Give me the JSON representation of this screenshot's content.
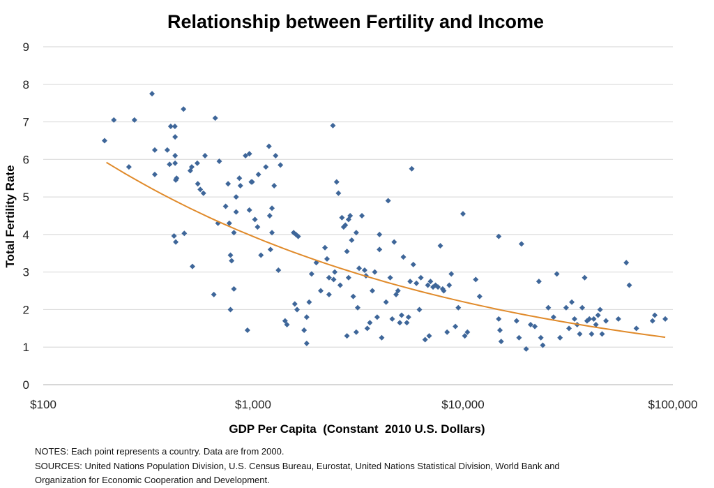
{
  "chart_data": {
    "type": "scatter",
    "title": "Relationship between Fertility and Income",
    "xlabel": "GDP Per Capita  (Constant  2010 U.S. Dollars)",
    "ylabel": "Total Fertility Rate",
    "xscale": "log",
    "xlim": [
      100,
      100000
    ],
    "ylim": [
      0,
      9
    ],
    "x_ticks": [
      100,
      1000,
      10000,
      100000
    ],
    "x_tick_labels": [
      "$100",
      "$1,000",
      "$10,000",
      "$100,000"
    ],
    "y_ticks": [
      0,
      1,
      2,
      3,
      4,
      5,
      6,
      7,
      8,
      9
    ],
    "y_tick_labels": [
      "0",
      "1",
      "2",
      "3",
      "4",
      "5",
      "6",
      "7",
      "8",
      "9"
    ],
    "grid": true,
    "point_color": "#3e6699",
    "trend_color": "#e08a2a",
    "trendline": {
      "type": "power",
      "a": 22.5,
      "b": -0.252,
      "x_range": [
        200,
        92000
      ]
    },
    "points": [
      [
        196,
        6.5
      ],
      [
        217,
        7.05
      ],
      [
        272,
        7.05
      ],
      [
        256,
        5.8
      ],
      [
        330,
        7.75
      ],
      [
        340,
        6.25
      ],
      [
        340,
        5.6
      ],
      [
        390,
        6.25
      ],
      [
        400,
        5.87
      ],
      [
        405,
        6.88
      ],
      [
        424,
        6.88
      ],
      [
        425,
        6.6
      ],
      [
        425,
        6.1
      ],
      [
        425,
        5.9
      ],
      [
        428,
        5.45
      ],
      [
        432,
        5.5
      ],
      [
        420,
        3.96
      ],
      [
        428,
        3.8
      ],
      [
        466,
        7.34
      ],
      [
        470,
        4.03
      ],
      [
        514,
        3.15
      ],
      [
        502,
        5.7
      ],
      [
        510,
        5.8
      ],
      [
        542,
        5.9
      ],
      [
        545,
        5.35
      ],
      [
        560,
        5.2
      ],
      [
        580,
        5.1
      ],
      [
        590,
        6.1
      ],
      [
        660,
        7.1
      ],
      [
        650,
        2.4
      ],
      [
        690,
        5.95
      ],
      [
        680,
        4.3
      ],
      [
        740,
        4.75
      ],
      [
        760,
        5.35
      ],
      [
        770,
        4.3
      ],
      [
        780,
        3.45
      ],
      [
        790,
        3.3
      ],
      [
        780,
        2.0
      ],
      [
        810,
        2.55
      ],
      [
        810,
        4.05
      ],
      [
        830,
        4.6
      ],
      [
        830,
        5.0
      ],
      [
        860,
        5.5
      ],
      [
        870,
        5.3
      ],
      [
        920,
        6.1
      ],
      [
        960,
        6.15
      ],
      [
        940,
        1.45
      ],
      [
        960,
        4.65
      ],
      [
        980,
        5.4
      ],
      [
        990,
        5.4
      ],
      [
        1020,
        4.4
      ],
      [
        1050,
        4.2
      ],
      [
        1060,
        5.6
      ],
      [
        1090,
        3.45
      ],
      [
        1150,
        5.8
      ],
      [
        1190,
        6.35
      ],
      [
        1200,
        4.5
      ],
      [
        1210,
        3.6
      ],
      [
        1230,
        4.05
      ],
      [
        1230,
        4.7
      ],
      [
        1260,
        5.3
      ],
      [
        1280,
        6.1
      ],
      [
        1320,
        3.05
      ],
      [
        1350,
        5.85
      ],
      [
        1420,
        1.7
      ],
      [
        1450,
        1.6
      ],
      [
        1560,
        4.05
      ],
      [
        1600,
        4.0
      ],
      [
        1640,
        3.95
      ],
      [
        1580,
        2.15
      ],
      [
        1620,
        2.0
      ],
      [
        1750,
        1.45
      ],
      [
        1800,
        1.8
      ],
      [
        1800,
        1.1
      ],
      [
        1850,
        2.2
      ],
      [
        1900,
        2.95
      ],
      [
        2000,
        3.25
      ],
      [
        2100,
        2.5
      ],
      [
        2200,
        3.65
      ],
      [
        2250,
        3.35
      ],
      [
        2300,
        2.4
      ],
      [
        2400,
        6.9
      ],
      [
        2300,
        2.85
      ],
      [
        2420,
        2.8
      ],
      [
        2450,
        3.0
      ],
      [
        2500,
        5.4
      ],
      [
        2550,
        5.1
      ],
      [
        2600,
        2.65
      ],
      [
        2650,
        4.45
      ],
      [
        2700,
        4.2
      ],
      [
        2750,
        4.25
      ],
      [
        2800,
        1.3
      ],
      [
        2800,
        3.55
      ],
      [
        2850,
        4.4
      ],
      [
        2900,
        4.5
      ],
      [
        2950,
        3.85
      ],
      [
        2850,
        2.85
      ],
      [
        3000,
        2.35
      ],
      [
        3100,
        1.4
      ],
      [
        3150,
        2.05
      ],
      [
        3200,
        3.1
      ],
      [
        3100,
        4.05
      ],
      [
        3300,
        4.5
      ],
      [
        3400,
        3.05
      ],
      [
        3450,
        2.9
      ],
      [
        3500,
        1.5
      ],
      [
        3600,
        1.65
      ],
      [
        3700,
        2.5
      ],
      [
        3800,
        3.0
      ],
      [
        3900,
        1.8
      ],
      [
        4000,
        4.0
      ],
      [
        4000,
        3.6
      ],
      [
        4100,
        1.25
      ],
      [
        4300,
        2.2
      ],
      [
        4400,
        4.9
      ],
      [
        4500,
        2.85
      ],
      [
        4600,
        1.75
      ],
      [
        4700,
        3.8
      ],
      [
        4800,
        2.4
      ],
      [
        4900,
        2.5
      ],
      [
        5000,
        1.65
      ],
      [
        5100,
        1.85
      ],
      [
        5200,
        3.4
      ],
      [
        5400,
        1.65
      ],
      [
        5500,
        1.8
      ],
      [
        5600,
        2.75
      ],
      [
        5700,
        5.75
      ],
      [
        5800,
        3.2
      ],
      [
        6000,
        2.7
      ],
      [
        6200,
        2.0
      ],
      [
        6300,
        2.85
      ],
      [
        6600,
        1.2
      ],
      [
        6800,
        2.65
      ],
      [
        6900,
        1.3
      ],
      [
        7000,
        2.75
      ],
      [
        7200,
        2.6
      ],
      [
        7400,
        2.65
      ],
      [
        7600,
        2.6
      ],
      [
        7800,
        3.7
      ],
      [
        8000,
        2.55
      ],
      [
        8100,
        2.5
      ],
      [
        8400,
        1.4
      ],
      [
        8600,
        2.65
      ],
      [
        8800,
        2.95
      ],
      [
        9200,
        1.55
      ],
      [
        9500,
        2.05
      ],
      [
        10000,
        4.55
      ],
      [
        10200,
        1.3
      ],
      [
        10500,
        1.4
      ],
      [
        11500,
        2.8
      ],
      [
        12000,
        2.35
      ],
      [
        14800,
        3.95
      ],
      [
        14800,
        1.75
      ],
      [
        15200,
        1.15
      ],
      [
        15000,
        1.45
      ],
      [
        18000,
        1.7
      ],
      [
        19000,
        3.75
      ],
      [
        18500,
        1.25
      ],
      [
        20000,
        0.95
      ],
      [
        21000,
        1.6
      ],
      [
        22000,
        1.55
      ],
      [
        23000,
        2.75
      ],
      [
        23500,
        1.25
      ],
      [
        24000,
        1.05
      ],
      [
        25500,
        2.05
      ],
      [
        27000,
        1.8
      ],
      [
        28000,
        2.95
      ],
      [
        29000,
        1.25
      ],
      [
        31000,
        2.05
      ],
      [
        32000,
        1.5
      ],
      [
        33000,
        2.2
      ],
      [
        34000,
        1.75
      ],
      [
        35000,
        1.6
      ],
      [
        36000,
        1.35
      ],
      [
        37000,
        2.05
      ],
      [
        38000,
        2.85
      ],
      [
        39000,
        1.7
      ],
      [
        40000,
        1.75
      ],
      [
        41000,
        1.35
      ],
      [
        42000,
        1.75
      ],
      [
        43000,
        1.6
      ],
      [
        44000,
        1.85
      ],
      [
        45000,
        2.0
      ],
      [
        46000,
        1.35
      ],
      [
        48000,
        1.7
      ],
      [
        55000,
        1.75
      ],
      [
        60000,
        3.25
      ],
      [
        62000,
        2.65
      ],
      [
        67000,
        1.5
      ],
      [
        80000,
        1.7
      ],
      [
        82000,
        1.85
      ],
      [
        92000,
        1.75
      ]
    ]
  },
  "notes": {
    "line1": "NOTES: Each point represents a country. Data are from 2000.",
    "line2": "SOURCES: United Nations Population Division, U.S. Census Bureau, Eurostat, United Nations Statistical Division, World Bank and",
    "line3": "Organization for Economic Cooperation and Development."
  }
}
